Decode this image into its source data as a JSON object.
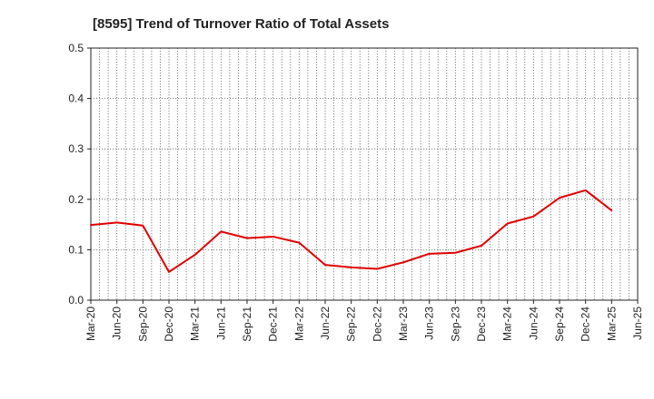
{
  "chart_data": {
    "type": "line",
    "title": "[8595]  Trend of Turnover Ratio of Total Assets",
    "xlabel": "",
    "ylabel": "",
    "ylim": [
      0,
      0.5
    ],
    "y_ticks": [
      "0.0",
      "0.1",
      "0.2",
      "0.3",
      "0.4",
      "0.5"
    ],
    "x_tick_labels": [
      "Mar-20",
      "Jun-20",
      "Sep-20",
      "Dec-20",
      "Mar-21",
      "Jun-21",
      "Sep-21",
      "Dec-21",
      "Mar-22",
      "Jun-22",
      "Sep-22",
      "Dec-22",
      "Mar-23",
      "Jun-23",
      "Sep-23",
      "Dec-23",
      "Mar-24",
      "Jun-24",
      "Sep-24",
      "Dec-24",
      "Mar-25",
      "Jun-25"
    ],
    "grid": true,
    "series": [
      {
        "color": "#e00000",
        "x": [
          "Mar-20",
          "Jun-20",
          "Sep-20",
          "Dec-20",
          "Mar-21",
          "Jun-21",
          "Sep-21",
          "Dec-21",
          "Mar-22",
          "Jun-22",
          "Sep-22",
          "Dec-22",
          "Mar-23",
          "Jun-23",
          "Sep-23",
          "Dec-23",
          "Mar-24",
          "Jun-24",
          "Sep-24",
          "Dec-24",
          "Mar-25"
        ],
        "values": [
          0.149,
          0.154,
          0.148,
          0.056,
          0.09,
          0.136,
          0.123,
          0.126,
          0.114,
          0.07,
          0.065,
          0.062,
          0.075,
          0.092,
          0.094,
          0.108,
          0.152,
          0.166,
          0.203,
          0.218,
          0.178
        ]
      }
    ]
  }
}
